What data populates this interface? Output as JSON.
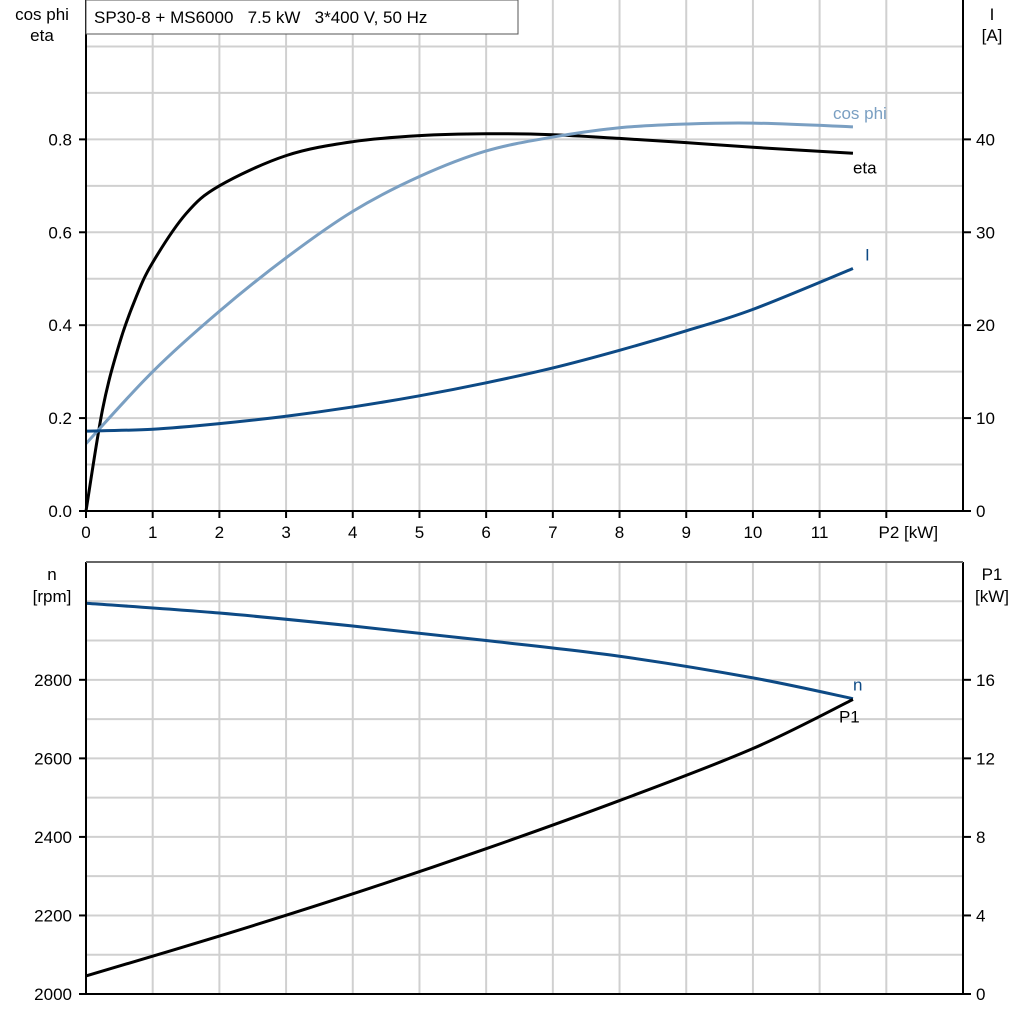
{
  "chart_data": [
    {
      "type": "line",
      "title": "SP30-8 + MS6000   7.5 kW   3*400 V, 50 Hz",
      "xlabel": "P2 [kW]",
      "ylabel_left": [
        "cos phi",
        "eta"
      ],
      "ylabel_right": [
        "I",
        "[A]"
      ],
      "xlim": [
        0,
        13.15
      ],
      "ylim_left": [
        0,
        1.1
      ],
      "ylim_right": [
        0,
        55
      ],
      "x_ticks": [
        "0",
        "1",
        "2",
        "3",
        "4",
        "5",
        "6",
        "7",
        "8",
        "9",
        "10",
        "11"
      ],
      "y_ticks_left": [
        "0.0",
        "0.2",
        "0.4",
        "0.6",
        "0.8"
      ],
      "y_ticks_right": [
        "0",
        "10",
        "20",
        "30",
        "40"
      ],
      "grid": true,
      "series": [
        {
          "name": "eta",
          "axis": "left",
          "color": "#000000",
          "x": [
            0,
            0.25,
            0.5,
            0.75,
            1,
            1.5,
            2,
            3,
            4,
            5,
            6,
            7,
            8,
            9,
            10,
            11.5
          ],
          "y": [
            0,
            0.22,
            0.36,
            0.46,
            0.535,
            0.64,
            0.7,
            0.765,
            0.795,
            0.808,
            0.812,
            0.81,
            0.802,
            0.793,
            0.783,
            0.77
          ]
        },
        {
          "name": "cos phi",
          "axis": "left",
          "color": "#7a9fc2",
          "x": [
            0,
            1,
            2,
            3,
            4,
            5,
            6,
            7,
            8,
            9,
            10,
            11.5
          ],
          "y": [
            0.145,
            0.3,
            0.43,
            0.545,
            0.645,
            0.72,
            0.775,
            0.805,
            0.825,
            0.833,
            0.835,
            0.827
          ]
        },
        {
          "name": "I",
          "axis": "right",
          "color": "#0d4a85",
          "x": [
            0,
            1,
            2,
            3,
            4,
            5,
            6,
            7,
            8,
            9,
            10,
            11.5
          ],
          "y": [
            8.6,
            8.8,
            9.4,
            10.2,
            11.2,
            12.4,
            13.8,
            15.4,
            17.3,
            19.4,
            21.7,
            26.1
          ]
        }
      ]
    },
    {
      "type": "line",
      "xlim": [
        0,
        13.15
      ],
      "ylabel_left": [
        "n",
        "[rpm]"
      ],
      "ylabel_right": [
        "P1",
        "[kW]"
      ],
      "ylim_left": [
        2000,
        3100
      ],
      "ylim_right": [
        0,
        22
      ],
      "y_ticks_left": [
        "2000",
        "2200",
        "2400",
        "2600",
        "2800"
      ],
      "y_ticks_right": [
        "0",
        "4",
        "8",
        "12",
        "16"
      ],
      "grid": true,
      "series": [
        {
          "name": "n",
          "axis": "left",
          "color": "#0d4a85",
          "x": [
            0,
            2,
            4,
            6,
            8,
            10,
            11.5
          ],
          "y": [
            2995,
            2970,
            2937,
            2900,
            2860,
            2805,
            2752
          ]
        },
        {
          "name": "P1",
          "axis": "right",
          "color": "#000000",
          "x": [
            0,
            2,
            4,
            6,
            8,
            10,
            11.5
          ],
          "y": [
            0.92,
            2.95,
            5.1,
            7.4,
            9.85,
            12.5,
            15.0
          ]
        }
      ]
    }
  ]
}
